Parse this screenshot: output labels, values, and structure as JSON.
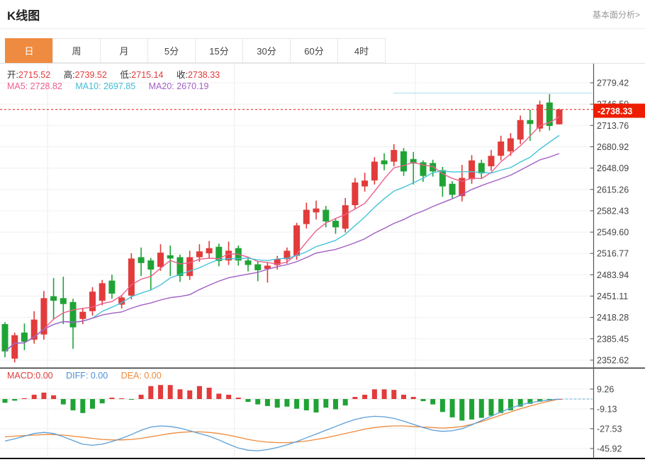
{
  "header": {
    "title": "K线图",
    "link_label": "基本面分析>"
  },
  "tabs": {
    "items": [
      {
        "key": "day",
        "label": "日",
        "active": true
      },
      {
        "key": "week",
        "label": "周",
        "active": false
      },
      {
        "key": "month",
        "label": "月",
        "active": false
      },
      {
        "key": "5min",
        "label": "5分",
        "active": false
      },
      {
        "key": "15min",
        "label": "15分",
        "active": false
      },
      {
        "key": "30min",
        "label": "30分",
        "active": false
      },
      {
        "key": "60min",
        "label": "60分",
        "active": false
      },
      {
        "key": "4hour",
        "label": "4时",
        "active": false
      }
    ]
  },
  "legend": {
    "open_label": "开:",
    "open_value": "2715.52",
    "high_label": "高:",
    "high_value": "2739.52",
    "low_label": "低:",
    "low_value": "2715.14",
    "close_label": "收:",
    "close_value": "2738.33"
  },
  "ma_legend": {
    "ma5_label": "MA5:",
    "ma5_value": "2728.82",
    "ma10_label": "MA10:",
    "ma10_value": "2697.85",
    "ma20_label": "MA20:",
    "ma20_value": "2670.19"
  },
  "macd_legend": {
    "macd_label": "MACD:",
    "macd_value": "0.00",
    "diff_label": "DIFF:",
    "diff_value": "0.00",
    "dea_label": "DEA:",
    "dea_value": "0.00"
  },
  "colors": {
    "up": "#e23b3b",
    "down": "#1fa335",
    "ma5": "#ec5f8c",
    "ma10": "#45c3da",
    "ma20": "#a25fc4",
    "diff_line": "#5b9fd8",
    "dea_line": "#ef8a3a",
    "tab_active": "#ef8b40",
    "badge": "#ee1c00",
    "price_line": "#f03030",
    "grid": "#f0f0f0",
    "vgrid": "#ececec",
    "axis": "#555",
    "axis_text": "#444",
    "high_marker": "#a8dbe6",
    "zero_dash": "#8fc7ee"
  },
  "chart_data": {
    "type": "candlestick+macd",
    "title": "K线图",
    "interval": "日",
    "last_candle": {
      "open": 2715.52,
      "high": 2739.52,
      "low": 2715.14,
      "close": 2738.33
    },
    "ma_values": {
      "MA5": 2728.82,
      "MA10": 2697.85,
      "MA20": 2670.19
    },
    "macd_values": {
      "MACD": 0.0,
      "DIFF": 0.0,
      "DEA": 0.0
    },
    "price_ticks": [
      "2779.42",
      "2746.59",
      "2713.76",
      "2680.92",
      "2648.09",
      "2615.26",
      "2582.43",
      "2549.60",
      "2516.77",
      "2483.94",
      "2451.11",
      "2418.28",
      "2385.45",
      "2352.62"
    ],
    "macd_ticks": [
      "9.26",
      "-9.13",
      "-27.53",
      "-45.92"
    ],
    "last_price_label": "2738.33",
    "last_price": 2738.33,
    "high_marker_price": 2763.5,
    "candles": [
      [
        2408,
        2366,
        2357,
        2411
      ],
      [
        2355,
        2391,
        2349,
        2395
      ],
      [
        2395,
        2381,
        2368,
        2409
      ],
      [
        2384,
        2415,
        2378,
        2428
      ],
      [
        2392,
        2448,
        2384,
        2459
      ],
      [
        2451,
        2444,
        2415,
        2479
      ],
      [
        2448,
        2439,
        2408,
        2481
      ],
      [
        2442,
        2403,
        2370,
        2447
      ],
      [
        2416,
        2427,
        2408,
        2433
      ],
      [
        2428,
        2458,
        2421,
        2465
      ],
      [
        2444,
        2471,
        2437,
        2476
      ],
      [
        2475,
        2455,
        2447,
        2484
      ],
      [
        2438,
        2449,
        2432,
        2453
      ],
      [
        2452,
        2509,
        2446,
        2517
      ],
      [
        2511,
        2502,
        2482,
        2526
      ],
      [
        2506,
        2492,
        2460,
        2510
      ],
      [
        2496,
        2518,
        2490,
        2531
      ],
      [
        2514,
        2509,
        2482,
        2529
      ],
      [
        2511,
        2482,
        2473,
        2515
      ],
      [
        2482,
        2511,
        2476,
        2521
      ],
      [
        2511,
        2520,
        2504,
        2531
      ],
      [
        2517,
        2525,
        2510,
        2536
      ],
      [
        2527,
        2505,
        2497,
        2532
      ],
      [
        2506,
        2521,
        2499,
        2535
      ],
      [
        2525,
        2506,
        2498,
        2529
      ],
      [
        2506,
        2499,
        2489,
        2511
      ],
      [
        2500,
        2491,
        2474,
        2504
      ],
      [
        2493,
        2498,
        2472,
        2503
      ],
      [
        2499,
        2508,
        2492,
        2513
      ],
      [
        2508,
        2521,
        2501,
        2526
      ],
      [
        2513,
        2560,
        2507,
        2564
      ],
      [
        2562,
        2584,
        2555,
        2595
      ],
      [
        2580,
        2586,
        2569,
        2598
      ],
      [
        2584,
        2566,
        2557,
        2590
      ],
      [
        2567,
        2557,
        2547,
        2571
      ],
      [
        2555,
        2591,
        2549,
        2602
      ],
      [
        2591,
        2626,
        2585,
        2633
      ],
      [
        2620,
        2629,
        2612,
        2641
      ],
      [
        2629,
        2658,
        2623,
        2665
      ],
      [
        2660,
        2654,
        2645,
        2671
      ],
      [
        2658,
        2676,
        2651,
        2685
      ],
      [
        2674,
        2643,
        2636,
        2679
      ],
      [
        2662,
        2655,
        2623,
        2673
      ],
      [
        2657,
        2636,
        2627,
        2660
      ],
      [
        2656,
        2643,
        2635,
        2661
      ],
      [
        2645,
        2620,
        2604,
        2650
      ],
      [
        2624,
        2607,
        2601,
        2628
      ],
      [
        2605,
        2633,
        2597,
        2653
      ],
      [
        2631,
        2660,
        2624,
        2668
      ],
      [
        2656,
        2640,
        2633,
        2661
      ],
      [
        2651,
        2667,
        2644,
        2676
      ],
      [
        2667,
        2689,
        2660,
        2698
      ],
      [
        2674,
        2694,
        2667,
        2702
      ],
      [
        2692,
        2722,
        2685,
        2729
      ],
      [
        2722,
        2716,
        2690,
        2738
      ],
      [
        2709,
        2746,
        2704,
        2752
      ],
      [
        2749,
        2713,
        2706,
        2762
      ],
      [
        2715.52,
        2738.33,
        2715.14,
        2739.52
      ]
    ],
    "macd_hist": [
      -3.5,
      -1.5,
      0.8,
      4,
      6,
      3.5,
      -5,
      -10.5,
      -13,
      -9,
      -4,
      1.3,
      0.7,
      -0.5,
      4,
      12,
      13,
      13,
      9,
      8,
      12,
      10.5,
      5,
      4,
      1.3,
      -2.6,
      -5,
      -6.5,
      -8,
      -7,
      -9,
      -10.5,
      -12.5,
      -8,
      -9.5,
      -6,
      2,
      4,
      9,
      9,
      8.5,
      4,
      2,
      -2,
      -5,
      -12,
      -17,
      -20,
      -19,
      -17.5,
      -15.5,
      -13,
      -10.5,
      -7,
      -4.5,
      -2.5,
      -1.2,
      0
    ],
    "diff": [
      -39,
      -37,
      -34.5,
      -32,
      -31,
      -32,
      -35,
      -38.5,
      -42,
      -43,
      -42,
      -39.5,
      -36.5,
      -33,
      -29,
      -26,
      -25,
      -25.5,
      -27,
      -29.5,
      -32,
      -34.5,
      -38,
      -42,
      -45.5,
      -47.5,
      -48,
      -47,
      -45,
      -42.5,
      -39.5,
      -36,
      -32.5,
      -29,
      -25.5,
      -22,
      -19,
      -17,
      -16,
      -16.5,
      -18,
      -20.5,
      -23.5,
      -26.5,
      -29,
      -30,
      -29.5,
      -27.5,
      -24,
      -20,
      -16,
      -12,
      -8.5,
      -5.5,
      -3.5,
      -2,
      -1,
      0
    ],
    "dea": [
      -35,
      -34.5,
      -34,
      -33.5,
      -33,
      -33,
      -33.5,
      -34.5,
      -35.5,
      -36.5,
      -37.5,
      -38,
      -38,
      -37.5,
      -36.5,
      -35,
      -33.5,
      -32,
      -31,
      -30.5,
      -30.5,
      -31,
      -32,
      -33.5,
      -35.5,
      -37.5,
      -39,
      -40,
      -40.5,
      -40.5,
      -40,
      -39,
      -37.5,
      -36,
      -34,
      -32,
      -30,
      -28,
      -26.5,
      -25.5,
      -25,
      -25,
      -25.5,
      -26,
      -26.5,
      -27,
      -26.5,
      -25.5,
      -23.5,
      -21,
      -18,
      -15,
      -12,
      -9,
      -6.5,
      -4,
      -2,
      0
    ]
  }
}
